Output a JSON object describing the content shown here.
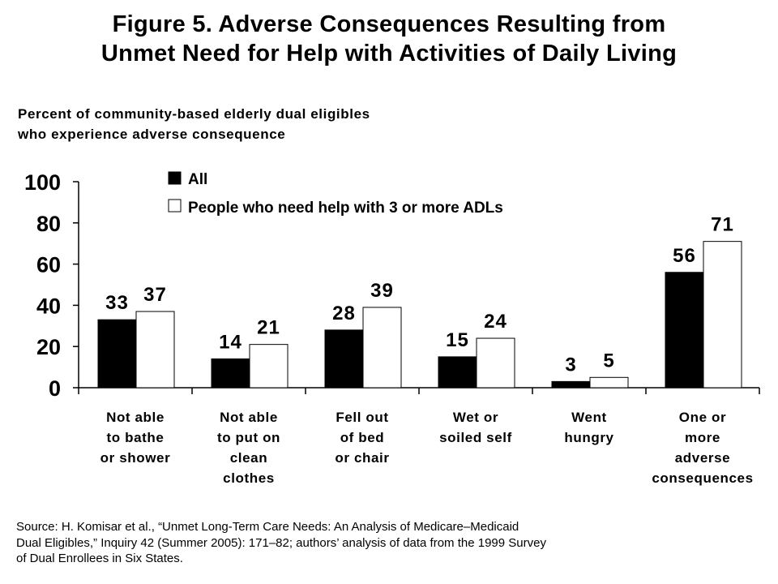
{
  "title_lines": [
    "Figure 5. Adverse Consequences Resulting from",
    "Unmet Need for Help with Activities of Daily Living"
  ],
  "subtitle_lines": [
    "Percent of community-based elderly dual eligibles",
    "who experience adverse consequence"
  ],
  "source_lines": [
    "Source: H. Komisar et al., “Unmet Long-Term Care Needs: An Analysis of Medicare–Medicaid",
    "Dual Eligibles,” Inquiry 42 (Summer 2005): 171–82; authors’ analysis of data from the 1999 Survey",
    "of Dual Enrollees in Six States."
  ],
  "colors": {
    "all": "#000000",
    "adl": "#ffffff",
    "outline": "#000000"
  },
  "chart_data": {
    "type": "bar",
    "categories": [
      [
        "Not able",
        "to bathe",
        "or shower"
      ],
      [
        "Not able",
        "to put on",
        "clean",
        "clothes"
      ],
      [
        "Fell out",
        "of bed",
        "or chair"
      ],
      [
        "Wet or",
        "soiled self"
      ],
      [
        "Went",
        "hungry"
      ],
      [
        "One or",
        "more",
        "adverse",
        "consequences"
      ]
    ],
    "series": [
      {
        "name": "All",
        "values": [
          33,
          14,
          28,
          15,
          3,
          56
        ]
      },
      {
        "name": "People who need help with 3 or more ADLs",
        "values": [
          37,
          21,
          39,
          24,
          5,
          71
        ]
      }
    ],
    "y_ticks": [
      "0",
      "20",
      "40",
      "60",
      "80",
      "100"
    ],
    "ylim": [
      0,
      100
    ],
    "legend_position": "top",
    "grid": false,
    "title": "Figure 5. Adverse Consequences Resulting from Unmet Need for Help with Activities of Daily Living",
    "ylabel": "Percent of community-based elderly dual eligibles who experience adverse consequence",
    "xlabel": ""
  }
}
